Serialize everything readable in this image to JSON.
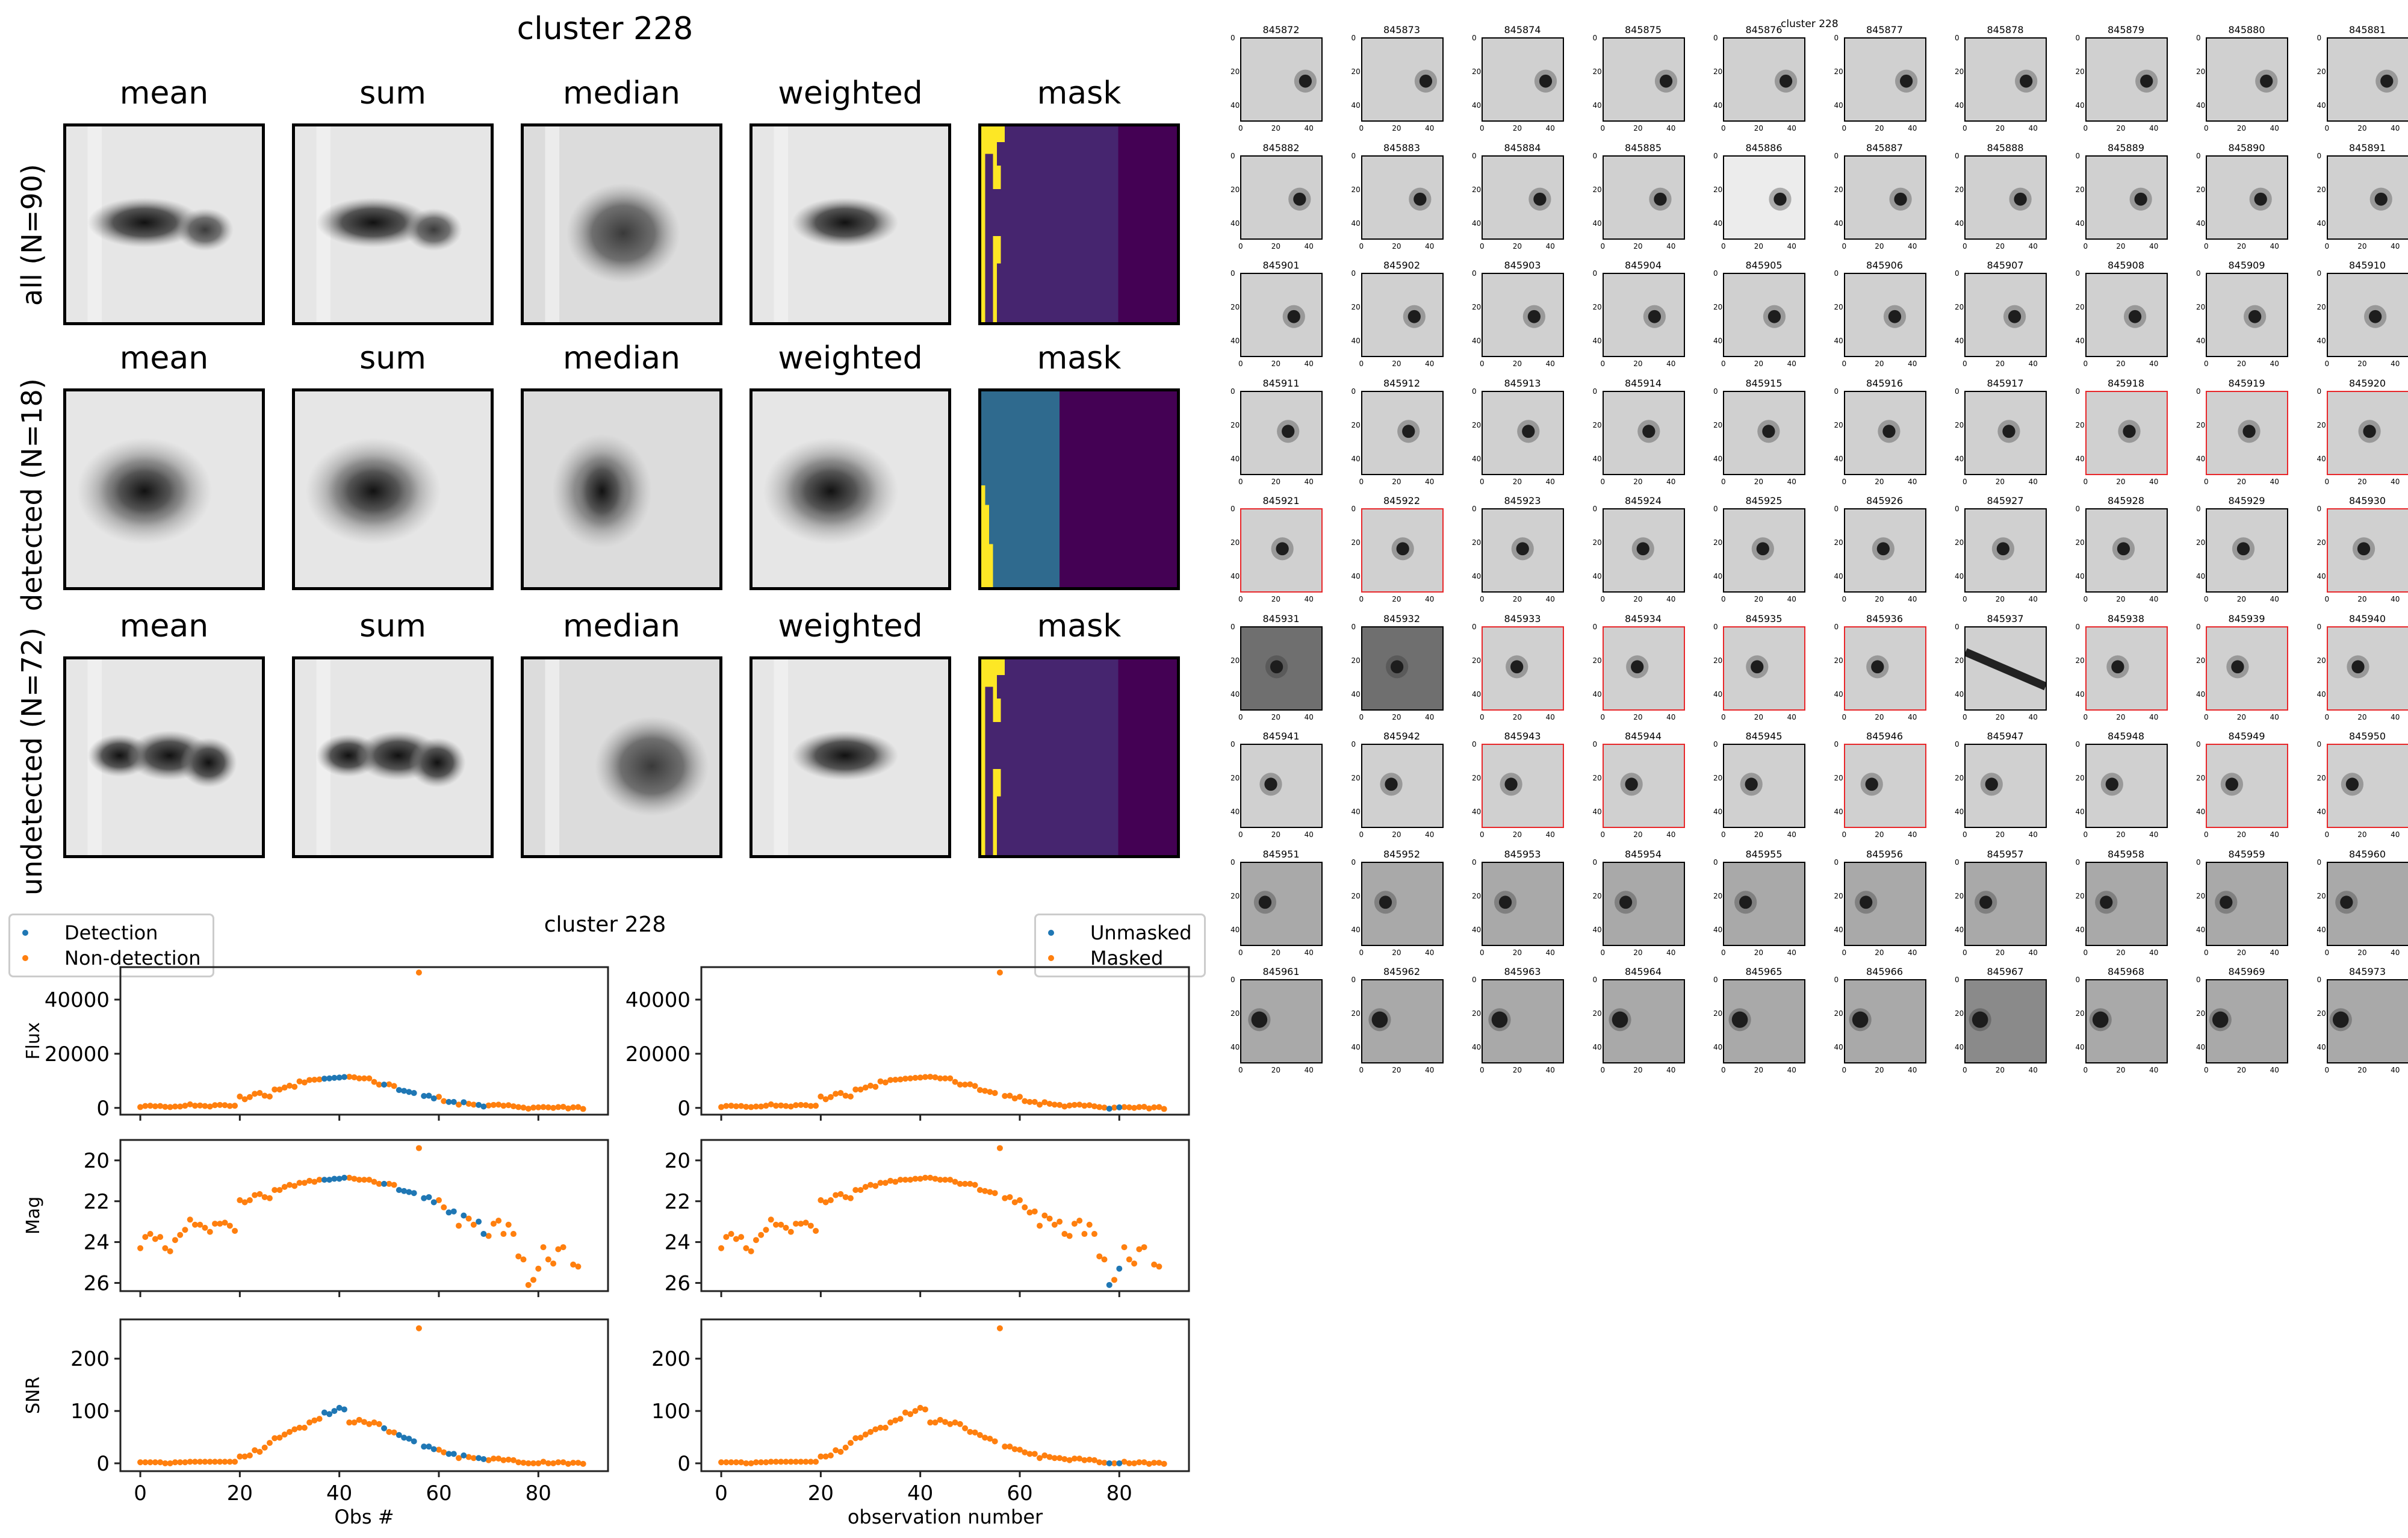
{
  "figure": {
    "suptitle": "cluster 228",
    "stack_columns": [
      "mean",
      "sum",
      "median",
      "weighted",
      "mask"
    ],
    "stack_rows": [
      {
        "label": "all (N=90)",
        "variant": "all"
      },
      {
        "label": "detected (N=18)",
        "variant": "detected"
      },
      {
        "label": "undetected (N=72)",
        "variant": "undetected"
      }
    ],
    "colors": {
      "detection": "#1f77b4",
      "non_detection": "#ff7f0e",
      "viridis_yellow": "#fde725",
      "viridis_purple": "#46256f",
      "viridis_dark": "#440154",
      "viridis_teal": "#2f6a8e",
      "flag_border": "#e8272a"
    }
  },
  "thumbnails": {
    "title": "cluster 228",
    "axis_ticks": [
      "0",
      "20",
      "40"
    ],
    "items": [
      {
        "id": "845872",
        "flag": false
      },
      {
        "id": "845873",
        "flag": false
      },
      {
        "id": "845874",
        "flag": false
      },
      {
        "id": "845875",
        "flag": false
      },
      {
        "id": "845876",
        "flag": false
      },
      {
        "id": "845877",
        "flag": false
      },
      {
        "id": "845878",
        "flag": false
      },
      {
        "id": "845879",
        "flag": false
      },
      {
        "id": "845880",
        "flag": false
      },
      {
        "id": "845881",
        "flag": false
      },
      {
        "id": "845882",
        "flag": false
      },
      {
        "id": "845883",
        "flag": false
      },
      {
        "id": "845884",
        "flag": false
      },
      {
        "id": "845885",
        "flag": false
      },
      {
        "id": "845886",
        "flag": false
      },
      {
        "id": "845887",
        "flag": false
      },
      {
        "id": "845888",
        "flag": false
      },
      {
        "id": "845889",
        "flag": false
      },
      {
        "id": "845890",
        "flag": false
      },
      {
        "id": "845891",
        "flag": false
      },
      {
        "id": "845901",
        "flag": false
      },
      {
        "id": "845902",
        "flag": false
      },
      {
        "id": "845903",
        "flag": false
      },
      {
        "id": "845904",
        "flag": false
      },
      {
        "id": "845905",
        "flag": false
      },
      {
        "id": "845906",
        "flag": false
      },
      {
        "id": "845907",
        "flag": false
      },
      {
        "id": "845908",
        "flag": false
      },
      {
        "id": "845909",
        "flag": false
      },
      {
        "id": "845910",
        "flag": false
      },
      {
        "id": "845911",
        "flag": false
      },
      {
        "id": "845912",
        "flag": false
      },
      {
        "id": "845913",
        "flag": false
      },
      {
        "id": "845914",
        "flag": false
      },
      {
        "id": "845915",
        "flag": false
      },
      {
        "id": "845916",
        "flag": false
      },
      {
        "id": "845917",
        "flag": false
      },
      {
        "id": "845918",
        "flag": true
      },
      {
        "id": "845919",
        "flag": true
      },
      {
        "id": "845920",
        "flag": true
      },
      {
        "id": "845921",
        "flag": true
      },
      {
        "id": "845922",
        "flag": true
      },
      {
        "id": "845923",
        "flag": false
      },
      {
        "id": "845924",
        "flag": false
      },
      {
        "id": "845925",
        "flag": false
      },
      {
        "id": "845926",
        "flag": false
      },
      {
        "id": "845927",
        "flag": false
      },
      {
        "id": "845928",
        "flag": false
      },
      {
        "id": "845929",
        "flag": false
      },
      {
        "id": "845930",
        "flag": true
      },
      {
        "id": "845931",
        "flag": false
      },
      {
        "id": "845932",
        "flag": false
      },
      {
        "id": "845933",
        "flag": true
      },
      {
        "id": "845934",
        "flag": true
      },
      {
        "id": "845935",
        "flag": true
      },
      {
        "id": "845936",
        "flag": true
      },
      {
        "id": "845937",
        "flag": false
      },
      {
        "id": "845938",
        "flag": true
      },
      {
        "id": "845939",
        "flag": true
      },
      {
        "id": "845940",
        "flag": true
      },
      {
        "id": "845941",
        "flag": false
      },
      {
        "id": "845942",
        "flag": false
      },
      {
        "id": "845943",
        "flag": true
      },
      {
        "id": "845944",
        "flag": true
      },
      {
        "id": "845945",
        "flag": false
      },
      {
        "id": "845946",
        "flag": true
      },
      {
        "id": "845947",
        "flag": false
      },
      {
        "id": "845948",
        "flag": false
      },
      {
        "id": "845949",
        "flag": true
      },
      {
        "id": "845950",
        "flag": true
      },
      {
        "id": "845951",
        "flag": false
      },
      {
        "id": "845952",
        "flag": false
      },
      {
        "id": "845953",
        "flag": false
      },
      {
        "id": "845954",
        "flag": false
      },
      {
        "id": "845955",
        "flag": false
      },
      {
        "id": "845956",
        "flag": false
      },
      {
        "id": "845957",
        "flag": false
      },
      {
        "id": "845958",
        "flag": false
      },
      {
        "id": "845959",
        "flag": false
      },
      {
        "id": "845960",
        "flag": false
      },
      {
        "id": "845961",
        "flag": false
      },
      {
        "id": "845962",
        "flag": false
      },
      {
        "id": "845963",
        "flag": false
      },
      {
        "id": "845964",
        "flag": false
      },
      {
        "id": "845965",
        "flag": false
      },
      {
        "id": "845966",
        "flag": false
      },
      {
        "id": "845967",
        "flag": false
      },
      {
        "id": "845968",
        "flag": false
      },
      {
        "id": "845969",
        "flag": false
      },
      {
        "id": "845973",
        "flag": false
      }
    ]
  },
  "chart_data": [
    {
      "type": "scatter",
      "title": "cluster 228",
      "panel": "left",
      "xlabel": "Obs #",
      "xlim": [
        -4,
        94
      ],
      "xticks": [
        0,
        20,
        40,
        60,
        80
      ],
      "legend": {
        "placement": "top-left",
        "entries": [
          {
            "label": "Detection",
            "color": "#1f77b4"
          },
          {
            "label": "Non-detection",
            "color": "#ff7f0e"
          }
        ]
      },
      "highlight_indices": [
        37,
        38,
        39,
        40,
        41,
        49,
        52,
        53,
        54,
        55,
        57,
        58,
        59,
        62,
        63,
        65,
        68,
        69
      ],
      "subplots": [
        {
          "ylabel": "Flux",
          "ylim": [
            -2500,
            52000
          ],
          "yticks": [
            0,
            20000,
            40000
          ],
          "ytick_labels": [
            "0",
            "20000",
            "40000"
          ],
          "inverted": false,
          "metric": "flux"
        },
        {
          "ylabel": "Mag",
          "ylim": [
            26.4,
            19.0
          ],
          "yticks": [
            20,
            22,
            24,
            26
          ],
          "ytick_labels": [
            "20",
            "22",
            "24",
            "26"
          ],
          "inverted": true,
          "metric": "mag"
        },
        {
          "ylabel": "SNR",
          "ylim": [
            -15,
            275
          ],
          "yticks": [
            0,
            100,
            200
          ],
          "ytick_labels": [
            "0",
            "100",
            "200"
          ],
          "inverted": false,
          "metric": "snr"
        }
      ]
    },
    {
      "type": "scatter",
      "panel": "right",
      "xlabel": "observation number",
      "xlim": [
        -4,
        94
      ],
      "xticks": [
        0,
        20,
        40,
        60,
        80
      ],
      "legend": {
        "placement": "top-right",
        "entries": [
          {
            "label": "Unmasked",
            "color": "#1f77b4"
          },
          {
            "label": "Masked",
            "color": "#ff7f0e"
          }
        ]
      },
      "highlight_indices": [
        78,
        80
      ],
      "subplots": [
        {
          "ylabel": "",
          "ylim": [
            -2500,
            52000
          ],
          "yticks": [
            0,
            20000,
            40000
          ],
          "ytick_labels": [
            "0",
            "20000",
            "40000"
          ],
          "inverted": false,
          "metric": "flux"
        },
        {
          "ylabel": "",
          "ylim": [
            26.4,
            19.0
          ],
          "yticks": [
            20,
            22,
            24,
            26
          ],
          "ytick_labels": [
            "20",
            "22",
            "24",
            "26"
          ],
          "inverted": true,
          "metric": "mag"
        },
        {
          "ylabel": "",
          "ylim": [
            -15,
            275
          ],
          "yticks": [
            0,
            100,
            200
          ],
          "ytick_labels": [
            "0",
            "100",
            "200"
          ],
          "inverted": false,
          "metric": "snr"
        }
      ]
    }
  ],
  "series": {
    "x": [
      0,
      1,
      2,
      3,
      4,
      5,
      6,
      7,
      8,
      9,
      10,
      11,
      12,
      13,
      14,
      15,
      16,
      17,
      18,
      19,
      20,
      21,
      22,
      23,
      24,
      25,
      26,
      27,
      28,
      29,
      30,
      31,
      32,
      33,
      34,
      35,
      36,
      37,
      38,
      39,
      40,
      41,
      42,
      43,
      44,
      45,
      46,
      47,
      48,
      49,
      50,
      51,
      52,
      53,
      54,
      55,
      56,
      57,
      58,
      59,
      60,
      61,
      62,
      63,
      64,
      65,
      66,
      67,
      68,
      69,
      70,
      71,
      72,
      73,
      74,
      75,
      76,
      77,
      78,
      79,
      80,
      81,
      82,
      83,
      84,
      85,
      86,
      87,
      88,
      89
    ],
    "flux": [
      300,
      700,
      800,
      600,
      700,
      400,
      300,
      500,
      500,
      800,
      1300,
      800,
      900,
      700,
      500,
      1000,
      1100,
      1000,
      700,
      800,
      4200,
      3200,
      4000,
      5200,
      5500,
      4500,
      4200,
      6800,
      6800,
      7500,
      8200,
      7800,
      9800,
      9400,
      10300,
      10400,
      10500,
      10800,
      10900,
      11100,
      11200,
      11400,
      11500,
      11300,
      10900,
      10900,
      10900,
      9600,
      8600,
      8600,
      8700,
      8100,
      6600,
      6300,
      5900,
      5500,
      50000,
      4400,
      4500,
      3500,
      4100,
      2500,
      2200,
      2200,
      1200,
      2100,
      1500,
      1200,
      1100,
      500,
      900,
      1100,
      1200,
      800,
      1000,
      600,
      300,
      100,
      -300,
      100,
      200,
      300,
      200,
      0,
      300,
      400,
      -200,
      200,
      300,
      -400
    ],
    "mag": [
      24.3,
      23.75,
      23.6,
      23.85,
      23.75,
      24.3,
      24.45,
      23.9,
      23.65,
      23.4,
      22.9,
      23.15,
      23.15,
      23.3,
      23.5,
      23.1,
      23.1,
      23.05,
      23.2,
      23.45,
      21.95,
      22.05,
      21.95,
      21.7,
      21.65,
      21.8,
      21.85,
      21.45,
      21.45,
      21.3,
      21.2,
      21.25,
      21.1,
      21.1,
      21.0,
      21.05,
      20.95,
      20.95,
      20.95,
      20.9,
      20.9,
      20.85,
      20.85,
      20.9,
      20.95,
      20.95,
      20.95,
      21.05,
      21.15,
      21.15,
      21.15,
      21.2,
      21.45,
      21.5,
      21.55,
      21.6,
      19.4,
      21.85,
      21.8,
      22.05,
      21.95,
      22.3,
      22.55,
      22.5,
      23.2,
      22.7,
      22.85,
      23.15,
      23.0,
      23.6,
      23.7,
      23.1,
      22.95,
      23.6,
      23.15,
      23.6,
      24.7,
      24.85,
      26.1,
      25.85,
      25.3,
      24.25,
      24.85,
      25.05,
      24.35,
      24.25,
      null,
      25.1,
      25.2,
      null
    ],
    "snr": [
      2,
      2,
      2,
      2,
      2,
      0,
      0,
      2,
      2,
      2,
      3,
      3,
      3,
      3,
      3,
      3,
      3,
      3,
      3,
      3,
      13,
      13,
      15,
      25,
      22,
      30,
      39,
      48,
      49,
      55,
      60,
      65,
      68,
      68,
      78,
      82,
      85,
      97,
      94,
      100,
      106,
      103,
      78,
      78,
      83,
      79,
      75,
      78,
      75,
      67,
      60,
      59,
      54,
      49,
      47,
      42,
      258,
      32,
      32,
      27,
      26,
      21,
      18,
      18,
      10,
      15,
      12,
      10,
      10,
      8,
      6,
      9,
      9,
      6,
      7,
      6,
      2,
      1,
      0,
      0,
      0,
      3,
      0,
      0,
      2,
      2,
      -1,
      1,
      1,
      -1
    ]
  }
}
